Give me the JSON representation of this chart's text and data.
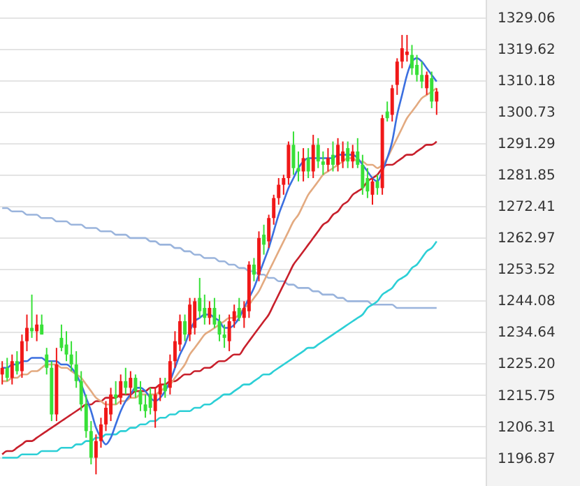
{
  "chart_data": {
    "type": "candlestick",
    "categories": [
      null,
      null,
      null,
      null,
      null,
      null,
      null,
      null,
      null,
      null,
      null,
      null,
      null,
      null,
      null,
      null,
      null,
      null,
      null,
      null,
      null,
      null,
      null,
      null,
      null,
      null,
      null,
      null,
      null,
      null,
      null,
      null,
      null,
      null,
      null,
      null,
      null,
      null,
      null,
      null,
      null,
      null,
      null,
      null,
      null,
      null,
      null,
      null,
      null,
      null,
      null,
      null,
      null,
      null,
      null,
      null,
      null,
      null,
      null,
      null,
      null,
      null,
      null,
      null,
      null,
      null,
      null,
      null,
      null,
      null,
      null,
      null,
      null,
      null,
      null,
      null,
      null,
      null,
      null,
      null,
      null,
      null,
      null,
      null,
      null,
      null,
      null,
      null,
      null
    ],
    "ohlc": [
      [
        1222,
        1226,
        1219,
        1224
      ],
      [
        1224,
        1227,
        1220,
        1221
      ],
      [
        1221,
        1228,
        1219,
        1226
      ],
      [
        1226,
        1229,
        1222,
        1223
      ],
      [
        1223,
        1234,
        1221,
        1232
      ],
      [
        1232,
        1240,
        1229,
        1236
      ],
      [
        1236,
        1246,
        1233,
        1235
      ],
      [
        1235,
        1240,
        1232,
        1237
      ],
      [
        1237,
        1240,
        1234,
        1234
      ],
      [
        1228,
        1230,
        1222,
        1224
      ],
      [
        1224,
        1226,
        1208,
        1210
      ],
      [
        1210,
        1230,
        1208,
        1225
      ],
      [
        1233,
        1237,
        1229,
        1230
      ],
      [
        1231,
        1235,
        1226,
        1228
      ],
      [
        1228,
        1232,
        1223,
        1225
      ],
      [
        1225,
        1229,
        1218,
        1220
      ],
      [
        1220,
        1223,
        1211,
        1213
      ],
      [
        1213,
        1216,
        1203,
        1205
      ],
      [
        1205,
        1208,
        1195,
        1197
      ],
      [
        1197,
        1204,
        1192,
        1202
      ],
      [
        1202,
        1209,
        1200,
        1207
      ],
      [
        1207,
        1214,
        1205,
        1212
      ],
      [
        1210,
        1218,
        1208,
        1216
      ],
      [
        1216,
        1220,
        1213,
        1215
      ],
      [
        1215,
        1222,
        1213,
        1220
      ],
      [
        1220,
        1224,
        1216,
        1218
      ],
      [
        1218,
        1223,
        1215,
        1221
      ],
      [
        1221,
        1222,
        1215,
        1217
      ],
      [
        1217,
        1220,
        1211,
        1213
      ],
      [
        1213,
        1216,
        1209,
        1211
      ],
      [
        1216,
        1218,
        1210,
        1212
      ],
      [
        1211,
        1218,
        1206,
        1216
      ],
      [
        1216,
        1221,
        1214,
        1219
      ],
      [
        1219,
        1221,
        1215,
        1217
      ],
      [
        1218,
        1228,
        1216,
        1226
      ],
      [
        1226,
        1235,
        1224,
        1232
      ],
      [
        1231,
        1240,
        1229,
        1238
      ],
      [
        1238,
        1240,
        1232,
        1234
      ],
      [
        1234,
        1245,
        1232,
        1243
      ],
      [
        1236,
        1245,
        1234,
        1244
      ],
      [
        1245,
        1251,
        1239,
        1241
      ],
      [
        1242,
        1246,
        1237,
        1239
      ],
      [
        1239,
        1244,
        1237,
        1242
      ],
      [
        1242,
        1245,
        1236,
        1237
      ],
      [
        1238,
        1240,
        1232,
        1234
      ],
      [
        1234,
        1237,
        1230,
        1233
      ],
      [
        1232,
        1240,
        1229,
        1238
      ],
      [
        1238,
        1243,
        1236,
        1241
      ],
      [
        1242,
        1245,
        1238,
        1239
      ],
      [
        1239,
        1244,
        1236,
        1242
      ],
      [
        1241,
        1256,
        1239,
        1255
      ],
      [
        1255,
        1257,
        1250,
        1252
      ],
      [
        1252,
        1265,
        1250,
        1263
      ],
      [
        1264,
        1267,
        1258,
        1261
      ],
      [
        1262,
        1270,
        1260,
        1269
      ],
      [
        1269,
        1276,
        1267,
        1275
      ],
      [
        1275,
        1281,
        1273,
        1279
      ],
      [
        1279,
        1282,
        1276,
        1281
      ],
      [
        1281,
        1292,
        1279,
        1291
      ],
      [
        1291,
        1295,
        1282,
        1284
      ],
      [
        1284,
        1289,
        1280,
        1283
      ],
      [
        1283,
        1290,
        1280,
        1287
      ],
      [
        1287,
        1290,
        1281,
        1283
      ],
      [
        1283,
        1294,
        1281,
        1291
      ],
      [
        1291,
        1293,
        1284,
        1286
      ],
      [
        1286,
        1289,
        1282,
        1285
      ],
      [
        1285,
        1290,
        1283,
        1287
      ],
      [
        1288,
        1292,
        1283,
        1285
      ],
      [
        1285,
        1293,
        1283,
        1291
      ],
      [
        1286,
        1292,
        1284,
        1289
      ],
      [
        1290,
        1292,
        1284,
        1286
      ],
      [
        1286,
        1291,
        1284,
        1289
      ],
      [
        1289,
        1293,
        1284,
        1285
      ],
      [
        1285,
        1288,
        1276,
        1278
      ],
      [
        1281,
        1284,
        1275,
        1277
      ],
      [
        1276,
        1281,
        1273,
        1280
      ],
      [
        1280,
        1282,
        1276,
        1278
      ],
      [
        1278,
        1300,
        1276,
        1299
      ],
      [
        1301,
        1304,
        1298,
        1299
      ],
      [
        1300,
        1309,
        1298,
        1308
      ],
      [
        1309,
        1317,
        1306,
        1316
      ],
      [
        1316,
        1324,
        1314,
        1320
      ],
      [
        1318,
        1324,
        1316,
        1319
      ],
      [
        1318,
        1321,
        1312,
        1314
      ],
      [
        1315,
        1318,
        1310,
        1312
      ],
      [
        1312,
        1316,
        1308,
        1310
      ],
      [
        1308,
        1313,
        1306,
        1312
      ],
      [
        1311,
        1313,
        1302,
        1304
      ],
      [
        1304,
        1308,
        1300,
        1307
      ]
    ],
    "colors": [
      "#f01818",
      "#38e038",
      "#f01818",
      "#38e038",
      "#f01818",
      "#f01818",
      "#38e038",
      "#f01818",
      "#38e038",
      "#38e038",
      "#38e038",
      "#f01818",
      "#38e038",
      "#38e038",
      "#38e038",
      "#38e038",
      "#38e038",
      "#38e038",
      "#38e038",
      "#f01818",
      "#f01818",
      "#f01818",
      "#f01818",
      "#38e038",
      "#f01818",
      "#38e038",
      "#f01818",
      "#38e038",
      "#38e038",
      "#38e038",
      "#38e038",
      "#f01818",
      "#f01818",
      "#38e038",
      "#f01818",
      "#f01818",
      "#f01818",
      "#38e038",
      "#f01818",
      "#f01818",
      "#38e038",
      "#38e038",
      "#f01818",
      "#38e038",
      "#38e038",
      "#38e038",
      "#f01818",
      "#f01818",
      "#38e038",
      "#f01818",
      "#f01818",
      "#38e038",
      "#f01818",
      "#38e038",
      "#f01818",
      "#f01818",
      "#f01818",
      "#f01818",
      "#f01818",
      "#38e038",
      "#38e038",
      "#f01818",
      "#38e038",
      "#f01818",
      "#38e038",
      "#38e038",
      "#f01818",
      "#38e038",
      "#f01818",
      "#f01818",
      "#38e038",
      "#f01818",
      "#38e038",
      "#38e038",
      "#38e038",
      "#f01818",
      "#38e038",
      "#f01818",
      "#38e038",
      "#f01818",
      "#f01818",
      "#f01818",
      "#f01818",
      "#38e038",
      "#38e038",
      "#38e038",
      "#f01818",
      "#38e038",
      "#f01818"
    ],
    "series": [
      {
        "type": "line",
        "color": "#9ab4dc",
        "values": [
          1272,
          1272,
          1271,
          1271,
          1271,
          1270,
          1270,
          1270,
          1269,
          1269,
          1269,
          1268,
          1268,
          1268,
          1267,
          1267,
          1267,
          1266,
          1266,
          1266,
          1265,
          1265,
          1265,
          1264,
          1264,
          1264,
          1263,
          1263,
          1263,
          1263,
          1262,
          1262,
          1261,
          1261,
          1261,
          1260,
          1260,
          1259,
          1259,
          1258,
          1258,
          1257,
          1257,
          1257,
          1256,
          1256,
          1255,
          1255,
          1254,
          1254,
          1253,
          1253,
          1252,
          1252,
          1251,
          1251,
          1250,
          1250,
          1249,
          1249,
          1248,
          1248,
          1248,
          1247,
          1247,
          1246,
          1246,
          1246,
          1245,
          1245,
          1244,
          1244,
          1244,
          1244,
          1244,
          1243,
          1243,
          1243,
          1243,
          1243,
          1242,
          1242,
          1242,
          1242,
          1242,
          1242,
          1242,
          1242,
          1242
        ]
      },
      {
        "type": "line",
        "color": "#2ccfd6",
        "values": [
          1197,
          1197,
          1197,
          1197,
          1198,
          1198,
          1198,
          1198,
          1199,
          1199,
          1199,
          1199,
          1200,
          1200,
          1200,
          1201,
          1201,
          1202,
          1202,
          1203,
          1203,
          1204,
          1204,
          1204,
          1205,
          1205,
          1206,
          1206,
          1207,
          1207,
          1208,
          1208,
          1209,
          1209,
          1210,
          1210,
          1211,
          1211,
          1211,
          1212,
          1212,
          1213,
          1213,
          1214,
          1215,
          1216,
          1216,
          1217,
          1218,
          1219,
          1219,
          1220,
          1221,
          1222,
          1222,
          1223,
          1224,
          1225,
          1226,
          1227,
          1228,
          1229,
          1230,
          1230,
          1231,
          1232,
          1233,
          1234,
          1235,
          1236,
          1237,
          1238,
          1239,
          1240,
          1242,
          1243,
          1244,
          1246,
          1247,
          1248,
          1250,
          1251,
          1252,
          1254,
          1255,
          1257,
          1259,
          1260,
          1262
        ]
      },
      {
        "type": "line",
        "color": "#c8202c",
        "values": [
          1198,
          1199,
          1199,
          1200,
          1201,
          1202,
          1202,
          1203,
          1204,
          1205,
          1206,
          1207,
          1208,
          1209,
          1210,
          1211,
          1212,
          1213,
          1213,
          1214,
          1214,
          1215,
          1215,
          1215,
          1216,
          1216,
          1216,
          1217,
          1217,
          1217,
          1218,
          1218,
          1219,
          1219,
          1220,
          1220,
          1221,
          1222,
          1222,
          1223,
          1223,
          1224,
          1224,
          1225,
          1226,
          1226,
          1227,
          1228,
          1228,
          1230,
          1232,
          1234,
          1236,
          1238,
          1240,
          1243,
          1246,
          1249,
          1252,
          1255,
          1257,
          1259,
          1261,
          1263,
          1265,
          1267,
          1268,
          1270,
          1271,
          1273,
          1274,
          1276,
          1277,
          1278,
          1280,
          1281,
          1282,
          1284,
          1285,
          1285,
          1286,
          1287,
          1288,
          1288,
          1289,
          1290,
          1291,
          1291,
          1292
        ]
      },
      {
        "type": "line",
        "color": "#e3aa80",
        "values": [
          1220,
          1220,
          1221,
          1221,
          1222,
          1222,
          1223,
          1223,
          1224,
          1225,
          1225,
          1225,
          1224,
          1224,
          1223,
          1222,
          1221,
          1219,
          1217,
          1215,
          1214,
          1213,
          1213,
          1213,
          1214,
          1214,
          1215,
          1215,
          1216,
          1216,
          1216,
          1216,
          1217,
          1218,
          1219,
          1221,
          1223,
          1225,
          1228,
          1230,
          1232,
          1234,
          1235,
          1236,
          1237,
          1238,
          1239,
          1239,
          1240,
          1242,
          1243,
          1245,
          1247,
          1250,
          1253,
          1256,
          1259,
          1262,
          1265,
          1268,
          1270,
          1273,
          1276,
          1278,
          1280,
          1282,
          1283,
          1284,
          1285,
          1286,
          1287,
          1287,
          1286,
          1286,
          1285,
          1285,
          1284,
          1285,
          1287,
          1290,
          1293,
          1296,
          1299,
          1301,
          1303,
          1305,
          1306,
          1307,
          1308
        ]
      },
      {
        "type": "line",
        "color": "#3b6fe0",
        "values": [
          1224,
          1224,
          1225,
          1225,
          1226,
          1226,
          1227,
          1227,
          1227,
          1226,
          1226,
          1226,
          1225,
          1225,
          1224,
          1222,
          1219,
          1215,
          1211,
          1206,
          1203,
          1201,
          1203,
          1207,
          1211,
          1214,
          1216,
          1218,
          1218,
          1217,
          1215,
          1214,
          1215,
          1217,
          1220,
          1224,
          1228,
          1231,
          1235,
          1238,
          1239,
          1240,
          1240,
          1239,
          1238,
          1236,
          1236,
          1237,
          1239,
          1242,
          1245,
          1248,
          1252,
          1256,
          1260,
          1265,
          1270,
          1274,
          1278,
          1281,
          1284,
          1286,
          1287,
          1287,
          1287,
          1287,
          1287,
          1287,
          1288,
          1288,
          1288,
          1288,
          1287,
          1285,
          1283,
          1281,
          1280,
          1283,
          1287,
          1292,
          1300,
          1306,
          1312,
          1316,
          1317,
          1316,
          1314,
          1312,
          1310
        ]
      }
    ],
    "ylim": [
      1188.5,
      1334.5
    ],
    "yticks": [
      1329.06,
      1319.62,
      1310.18,
      1300.73,
      1291.29,
      1281.85,
      1272.41,
      1262.97,
      1253.52,
      1244.08,
      1234.64,
      {
        "value": 1225.2,
        "label": "1225.20"
      },
      1215.75,
      1206.31,
      1196.87
    ],
    "grid": "y"
  }
}
